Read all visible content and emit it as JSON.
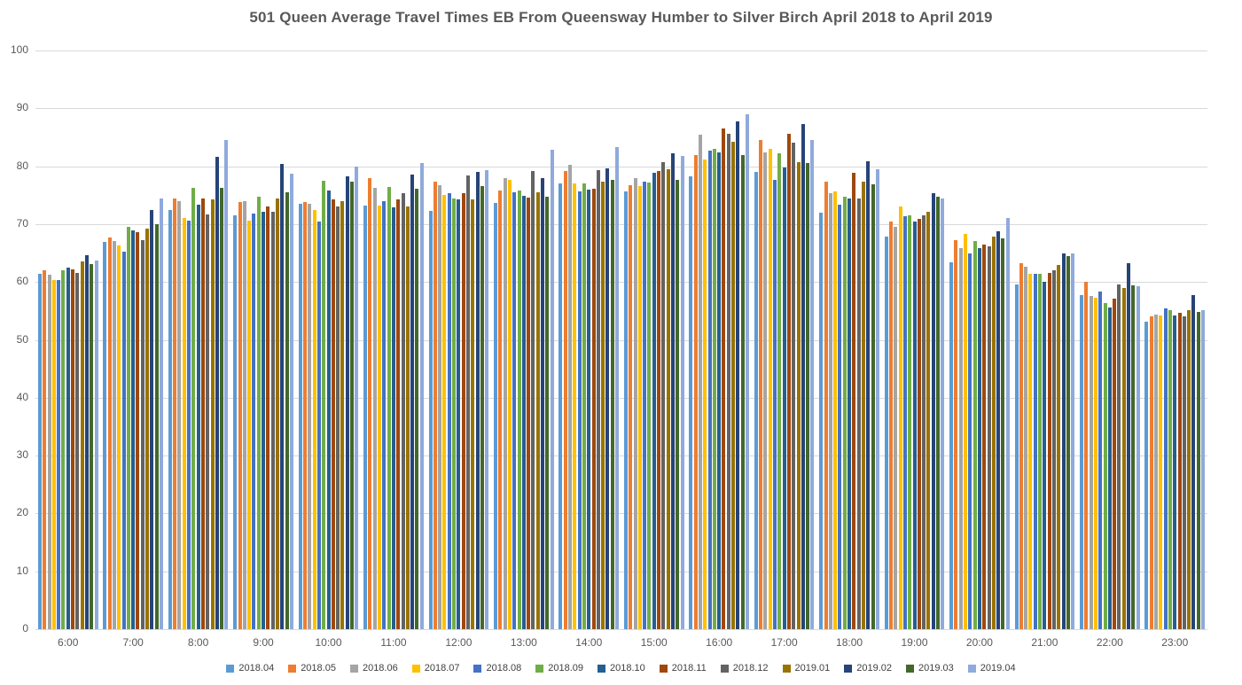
{
  "chart_data": {
    "type": "bar",
    "title": "501 Queen Average Travel Times EB From Queensway Humber to Silver Birch April 2018 to April 2019",
    "xlabel": "",
    "ylabel": "",
    "ylim": [
      0,
      100
    ],
    "yticks": [
      0,
      10,
      20,
      30,
      40,
      50,
      60,
      70,
      80,
      90,
      100
    ],
    "grid": true,
    "legend_position": "bottom",
    "categories": [
      "6:00",
      "7:00",
      "8:00",
      "9:00",
      "10:00",
      "11:00",
      "12:00",
      "13:00",
      "14:00",
      "15:00",
      "16:00",
      "17:00",
      "18:00",
      "19:00",
      "20:00",
      "21:00",
      "22:00",
      "23:00"
    ],
    "series": [
      {
        "name": "2018.04",
        "color": "#5B9BD5",
        "values": [
          61.4,
          67.0,
          72.5,
          71.5,
          73.5,
          73.2,
          72.3,
          73.7,
          77.0,
          75.7,
          78.2,
          79.0,
          72.0,
          67.9,
          63.4,
          59.6,
          57.8,
          53.2
        ]
      },
      {
        "name": "2018.05",
        "color": "#ED7D31",
        "values": [
          62.0,
          67.7,
          74.4,
          73.8,
          73.8,
          77.9,
          77.3,
          75.8,
          79.2,
          76.8,
          81.9,
          84.5,
          77.4,
          70.5,
          67.3,
          63.3,
          60.1,
          54.0
        ]
      },
      {
        "name": "2018.06",
        "color": "#A5A5A5",
        "values": [
          61.2,
          67.1,
          73.9,
          73.9,
          73.5,
          76.2,
          76.7,
          77.9,
          80.2,
          78.0,
          85.5,
          82.4,
          75.4,
          69.5,
          65.8,
          62.7,
          57.6,
          54.3
        ]
      },
      {
        "name": "2018.07",
        "color": "#FFC000",
        "values": [
          60.4,
          66.3,
          71.1,
          70.6,
          72.4,
          73.2,
          75.0,
          77.6,
          77.1,
          76.6,
          81.2,
          83.0,
          75.6,
          73.1,
          68.3,
          61.4,
          57.3,
          54.2
        ]
      },
      {
        "name": "2018.08",
        "color": "#4472C4",
        "values": [
          60.3,
          65.3,
          70.6,
          71.8,
          70.5,
          74.0,
          75.3,
          75.5,
          75.7,
          77.4,
          82.7,
          77.6,
          73.3,
          71.3,
          64.9,
          61.4,
          58.4,
          55.4
        ]
      },
      {
        "name": "2018.09",
        "color": "#70AD47",
        "values": [
          62.0,
          69.5,
          76.2,
          74.7,
          77.5,
          76.4,
          74.4,
          75.8,
          77.1,
          77.2,
          83.0,
          82.3,
          74.8,
          71.5,
          67.1,
          61.4,
          56.3,
          55.1
        ]
      },
      {
        "name": "2018.10",
        "color": "#255E91",
        "values": [
          62.5,
          68.9,
          73.3,
          72.1,
          75.8,
          72.9,
          74.2,
          74.9,
          76.0,
          78.9,
          82.4,
          79.8,
          74.4,
          70.4,
          65.9,
          60.1,
          55.6,
          54.2
        ]
      },
      {
        "name": "2018.11",
        "color": "#9E480E",
        "values": [
          62.2,
          68.6,
          74.4,
          73.1,
          74.3,
          74.3,
          75.4,
          74.6,
          76.1,
          79.2,
          86.6,
          85.6,
          78.8,
          70.9,
          66.5,
          61.5,
          57.1,
          54.6
        ]
      },
      {
        "name": "2018.12",
        "color": "#636363",
        "values": [
          61.5,
          67.3,
          71.6,
          72.2,
          73.1,
          75.3,
          78.4,
          79.1,
          79.4,
          80.7,
          85.6,
          84.1,
          74.4,
          71.5,
          66.2,
          62.1,
          59.5,
          54.1
        ]
      },
      {
        "name": "2019.01",
        "color": "#997300",
        "values": [
          63.5,
          69.2,
          74.2,
          74.5,
          73.9,
          73.0,
          74.2,
          75.5,
          77.4,
          79.5,
          84.2,
          80.7,
          77.4,
          72.2,
          67.9,
          63.0,
          58.9,
          55.1
        ]
      },
      {
        "name": "2019.02",
        "color": "#264478",
        "values": [
          64.6,
          72.4,
          81.6,
          80.4,
          78.2,
          78.5,
          79.0,
          77.9,
          79.6,
          82.2,
          87.7,
          87.3,
          80.8,
          75.4,
          68.8,
          64.9,
          63.3,
          57.7
        ]
      },
      {
        "name": "2019.03",
        "color": "#43682B",
        "values": [
          63.1,
          70.0,
          76.3,
          75.5,
          77.3,
          76.1,
          76.5,
          74.7,
          77.6,
          77.7,
          82.0,
          80.5,
          76.9,
          74.7,
          67.5,
          64.4,
          59.4,
          54.9
        ]
      },
      {
        "name": "2019.04",
        "color": "#8FAADC",
        "values": [
          63.7,
          74.4,
          84.5,
          78.7,
          79.9,
          80.6,
          79.4,
          82.8,
          83.3,
          81.8,
          89.0,
          84.6,
          79.5,
          74.4,
          71.1,
          64.9,
          59.3,
          55.2
        ]
      }
    ]
  }
}
